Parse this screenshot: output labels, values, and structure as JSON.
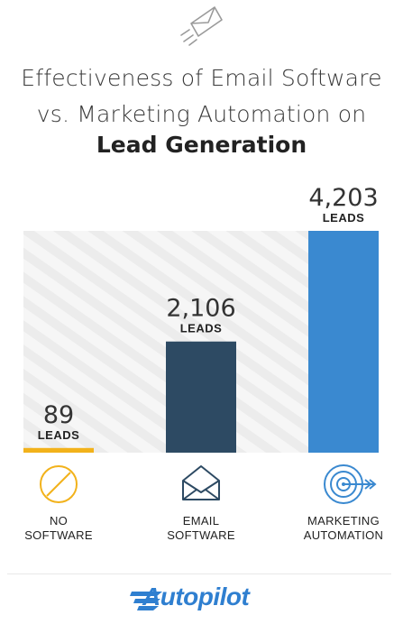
{
  "title": {
    "line1": "Effectiveness of Email Software",
    "line2": "vs. Marketing Automation on",
    "line3": "Lead Generation"
  },
  "chart_data": {
    "type": "bar",
    "categories": [
      [
        "NO",
        "SOFTWARE"
      ],
      [
        "EMAIL",
        "SOFTWARE"
      ],
      [
        "MARKETING",
        "AUTOMATION"
      ]
    ],
    "values": [
      89,
      2106,
      4203
    ],
    "value_labels": [
      "89",
      "2,106",
      "4,203"
    ],
    "unit_label": "LEADS",
    "ylim": [
      0,
      4203
    ],
    "colors": [
      "#f2b21b",
      "#2d4a63",
      "#3a89d0"
    ],
    "grid": false,
    "icons": [
      "no-entry-icon",
      "envelope-icon",
      "target-icon"
    ]
  },
  "header_icon": "paper-plane-icon",
  "footer": {
    "logo_text": "Autopilot",
    "logo_icon": "autopilot-wing-logo"
  }
}
